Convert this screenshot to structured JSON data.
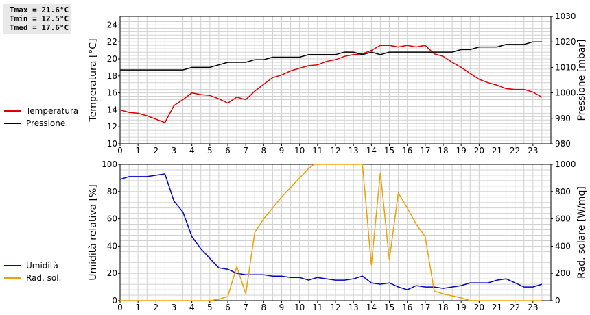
{
  "stats": {
    "tmax": "Tmax = 21.6°C",
    "tmin": "Tmin = 12.5°C",
    "tmed": "Tmed = 17.6°C"
  },
  "colors": {
    "temperatura": "#dd0000",
    "pressione": "#000000",
    "umidita": "#0000cc",
    "rad_sol": "#f0a000",
    "grid": "#d0d0d0"
  },
  "chart_data": [
    {
      "type": "line",
      "xlim": [
        0,
        24
      ],
      "x_ticks": [
        0,
        1,
        2,
        3,
        4,
        5,
        6,
        7,
        8,
        9,
        10,
        11,
        12,
        13,
        14,
        15,
        16,
        17,
        18,
        19,
        20,
        21,
        22,
        23
      ],
      "grid": true,
      "legend_placement": "left",
      "left_axis": {
        "label": "Temperatura [°C]",
        "ylim": [
          10,
          25
        ],
        "ticks": [
          10,
          12,
          14,
          16,
          18,
          20,
          22,
          24
        ]
      },
      "right_axis": {
        "label": "Pressione [mbar]",
        "ylim": [
          980,
          1030
        ],
        "ticks": [
          980,
          990,
          1000,
          1010,
          1020,
          1030
        ]
      },
      "series": [
        {
          "name": "Temperatura",
          "axis": "left",
          "x": [
            0,
            0.5,
            1,
            1.5,
            2,
            2.5,
            3,
            3.5,
            4,
            4.5,
            5,
            5.5,
            6,
            6.5,
            7,
            7.5,
            8,
            8.5,
            9,
            9.5,
            10,
            10.5,
            11,
            11.5,
            12,
            12.5,
            13,
            13.5,
            14,
            14.5,
            15,
            15.5,
            16,
            16.5,
            17,
            17.5,
            18,
            18.5,
            19,
            19.5,
            20,
            20.5,
            21,
            21.5,
            22,
            22.5,
            23,
            23.5
          ],
          "values": [
            14.0,
            13.7,
            13.6,
            13.3,
            12.9,
            12.5,
            14.5,
            15.2,
            16.0,
            15.8,
            15.7,
            15.3,
            14.8,
            15.5,
            15.2,
            16.2,
            17.0,
            17.8,
            18.1,
            18.6,
            18.9,
            19.2,
            19.3,
            19.7,
            19.9,
            20.3,
            20.5,
            20.6,
            21.0,
            21.6,
            21.6,
            21.4,
            21.6,
            21.4,
            21.6,
            20.6,
            20.3,
            19.6,
            19.0,
            18.3,
            17.6,
            17.2,
            16.9,
            16.5,
            16.4,
            16.4,
            16.1,
            15.5
          ]
        },
        {
          "name": "Pressione",
          "axis": "right",
          "x": [
            0,
            1,
            2,
            3,
            3.5,
            4,
            5,
            5.5,
            6,
            7,
            7.5,
            8,
            8.5,
            10,
            10.5,
            11,
            12,
            12.5,
            13,
            13.5,
            14,
            14.5,
            15,
            16,
            17,
            18,
            18.5,
            19,
            19.5,
            20,
            21,
            21.5,
            22,
            22.5,
            23,
            23.5
          ],
          "values": [
            1009,
            1009,
            1009,
            1009,
            1009,
            1010,
            1010,
            1011,
            1012,
            1012,
            1013,
            1013,
            1014,
            1014,
            1015,
            1015,
            1015,
            1016,
            1016,
            1015,
            1016,
            1015,
            1016,
            1016,
            1016,
            1016,
            1016,
            1017,
            1017,
            1018,
            1018,
            1019,
            1019,
            1019,
            1020,
            1020
          ]
        }
      ]
    },
    {
      "type": "line",
      "xlim": [
        0,
        24
      ],
      "x_ticks": [
        0,
        1,
        2,
        3,
        4,
        5,
        6,
        7,
        8,
        9,
        10,
        11,
        12,
        13,
        14,
        15,
        16,
        17,
        18,
        19,
        20,
        21,
        22,
        23
      ],
      "grid": true,
      "legend_placement": "left",
      "left_axis": {
        "label": "Umidità relativa [%]",
        "ylim": [
          0,
          100
        ],
        "ticks": [
          0,
          20,
          40,
          60,
          80,
          100
        ]
      },
      "right_axis": {
        "label": "Rad. solare [W/mq]",
        "ylim": [
          0,
          1000
        ],
        "ticks": [
          0,
          200,
          400,
          600,
          800,
          1000
        ]
      },
      "series": [
        {
          "name": "Umidità",
          "axis": "left",
          "x": [
            0,
            0.5,
            1,
            1.5,
            2,
            2.5,
            3,
            3.5,
            4,
            4.5,
            5,
            5.5,
            6,
            6.5,
            7,
            7.5,
            8,
            8.5,
            9,
            9.5,
            10,
            10.5,
            11,
            11.5,
            12,
            12.5,
            13,
            13.5,
            14,
            14.5,
            15,
            15.5,
            16,
            16.5,
            17,
            17.5,
            18,
            18.5,
            19,
            19.5,
            20,
            20.5,
            21,
            21.5,
            22,
            22.5,
            23,
            23.5
          ],
          "values": [
            89,
            91,
            91,
            91,
            92,
            93,
            73,
            65,
            47,
            38,
            31,
            24,
            23,
            20,
            19,
            19,
            19,
            18,
            18,
            17,
            17,
            15,
            17,
            16,
            15,
            15,
            16,
            18,
            13,
            12,
            13,
            10,
            8,
            11,
            10,
            10,
            9,
            10,
            11,
            13,
            13,
            13,
            15,
            16,
            13,
            10,
            10,
            12
          ]
        },
        {
          "name": "Rad. sol.",
          "axis": "right",
          "x": [
            0,
            1,
            2,
            3,
            4,
            5,
            5.5,
            6,
            6.5,
            7,
            7.5,
            8,
            8.5,
            9,
            9.5,
            10,
            10.5,
            10.8,
            13.5,
            14,
            14.5,
            15,
            15.5,
            16,
            16.5,
            17,
            17.5,
            18,
            19,
            19.5,
            20,
            21,
            22,
            23,
            23.5
          ],
          "values": [
            0,
            0,
            0,
            0,
            0,
            0,
            10,
            30,
            250,
            50,
            500,
            600,
            680,
            760,
            830,
            900,
            970,
            1000,
            1000,
            260,
            940,
            300,
            790,
            680,
            560,
            470,
            70,
            50,
            20,
            0,
            0,
            0,
            0,
            0,
            0
          ]
        }
      ]
    }
  ]
}
